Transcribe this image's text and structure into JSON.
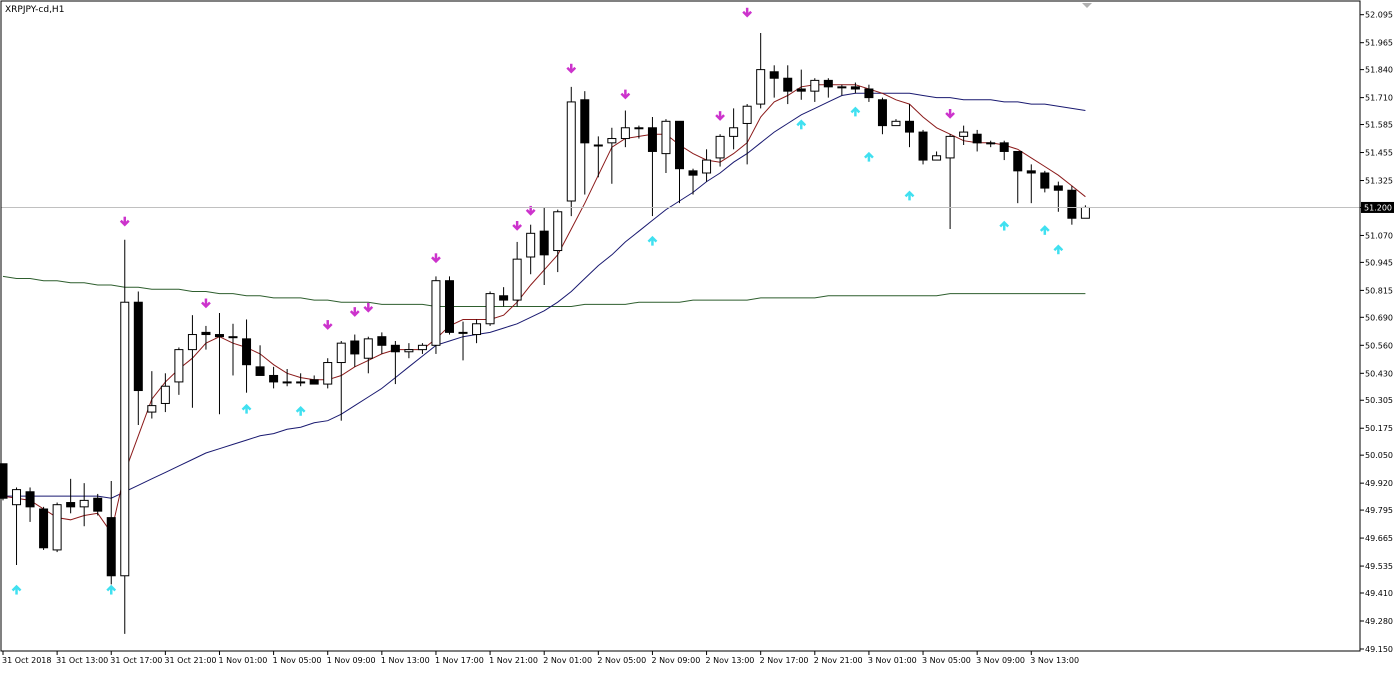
{
  "window": {
    "title": "XRPJPY-cd,H1"
  },
  "colors": {
    "background": "#ffffff",
    "frame": "#000000",
    "candle": "#000000",
    "ma_fast": "#8b1a1a",
    "ma_mid": "#191970",
    "ma_slow": "#2e5e2e",
    "arrow_up": "#40e0f0",
    "arrow_down": "#cc33cc",
    "price_line": "#c0c0c0",
    "price_label_bg": "#000000",
    "price_label_text": "#ffffff"
  },
  "chart_data": {
    "type": "candlestick",
    "symbol": "XRPJPY-cd",
    "timeframe": "H1",
    "ylim": [
      49.15,
      52.14
    ],
    "y_ticks": [
      "52.095",
      "51.965",
      "51.840",
      "51.710",
      "51.585",
      "51.455",
      "51.325",
      "51.200",
      "51.070",
      "50.945",
      "50.815",
      "50.690",
      "50.560",
      "50.430",
      "50.305",
      "50.175",
      "50.050",
      "49.920",
      "49.795",
      "49.665",
      "49.535",
      "49.410",
      "49.280",
      "49.150"
    ],
    "x_ticks": [
      {
        "i": 0,
        "label": "31 Oct 2018"
      },
      {
        "i": 4,
        "label": "31 Oct 13:00"
      },
      {
        "i": 8,
        "label": "31 Oct 17:00"
      },
      {
        "i": 12,
        "label": "31 Oct 21:00"
      },
      {
        "i": 16,
        "label": "1 Nov 01:00"
      },
      {
        "i": 20,
        "label": "1 Nov 05:00"
      },
      {
        "i": 24,
        "label": "1 Nov 09:00"
      },
      {
        "i": 28,
        "label": "1 Nov 13:00"
      },
      {
        "i": 32,
        "label": "1 Nov 17:00"
      },
      {
        "i": 36,
        "label": "1 Nov 21:00"
      },
      {
        "i": 40,
        "label": "2 Nov 01:00"
      },
      {
        "i": 44,
        "label": "2 Nov 05:00"
      },
      {
        "i": 48,
        "label": "2 Nov 09:00"
      },
      {
        "i": 52,
        "label": "2 Nov 13:00"
      },
      {
        "i": 56,
        "label": "2 Nov 17:00"
      },
      {
        "i": 60,
        "label": "2 Nov 21:00"
      },
      {
        "i": 64,
        "label": "3 Nov 01:00"
      },
      {
        "i": 68,
        "label": "3 Nov 05:00"
      },
      {
        "i": 72,
        "label": "3 Nov 09:00"
      },
      {
        "i": 76,
        "label": "3 Nov 13:00"
      }
    ],
    "current_price": 51.2,
    "current_price_label": "51.200",
    "candles": [
      {
        "o": 50.01,
        "h": 50.01,
        "l": 49.84,
        "c": 49.85
      },
      {
        "o": 49.82,
        "h": 49.9,
        "l": 49.54,
        "c": 49.89
      },
      {
        "o": 49.88,
        "h": 49.9,
        "l": 49.74,
        "c": 49.81
      },
      {
        "o": 49.8,
        "h": 49.81,
        "l": 49.61,
        "c": 49.62
      },
      {
        "o": 49.61,
        "h": 49.83,
        "l": 49.6,
        "c": 49.82
      },
      {
        "o": 49.83,
        "h": 49.94,
        "l": 49.78,
        "c": 49.81
      },
      {
        "o": 49.81,
        "h": 49.92,
        "l": 49.72,
        "c": 49.84
      },
      {
        "o": 49.85,
        "h": 49.87,
        "l": 49.77,
        "c": 49.79
      },
      {
        "o": 49.76,
        "h": 49.93,
        "l": 49.45,
        "c": 49.49
      },
      {
        "o": 49.49,
        "h": 51.05,
        "l": 49.22,
        "c": 50.76
      },
      {
        "o": 50.76,
        "h": 50.81,
        "l": 50.19,
        "c": 50.35
      },
      {
        "o": 50.25,
        "h": 50.44,
        "l": 50.22,
        "c": 50.28
      },
      {
        "o": 50.29,
        "h": 50.43,
        "l": 50.25,
        "c": 50.37
      },
      {
        "o": 50.39,
        "h": 50.55,
        "l": 50.33,
        "c": 50.54
      },
      {
        "o": 50.54,
        "h": 50.7,
        "l": 50.27,
        "c": 50.61
      },
      {
        "o": 50.62,
        "h": 50.65,
        "l": 50.54,
        "c": 50.61
      },
      {
        "o": 50.61,
        "h": 50.71,
        "l": 50.24,
        "c": 50.6
      },
      {
        "o": 50.6,
        "h": 50.66,
        "l": 50.42,
        "c": 50.6
      },
      {
        "o": 50.59,
        "h": 50.68,
        "l": 50.34,
        "c": 50.47
      },
      {
        "o": 50.46,
        "h": 50.56,
        "l": 50.42,
        "c": 50.42
      },
      {
        "o": 50.42,
        "h": 50.46,
        "l": 50.36,
        "c": 50.39
      },
      {
        "o": 50.39,
        "h": 50.45,
        "l": 50.37,
        "c": 50.39
      },
      {
        "o": 50.39,
        "h": 50.43,
        "l": 50.37,
        "c": 50.39
      },
      {
        "o": 50.4,
        "h": 50.42,
        "l": 50.38,
        "c": 50.38
      },
      {
        "o": 50.38,
        "h": 50.5,
        "l": 50.36,
        "c": 50.48
      },
      {
        "o": 50.48,
        "h": 50.58,
        "l": 50.21,
        "c": 50.57
      },
      {
        "o": 50.58,
        "h": 50.61,
        "l": 50.46,
        "c": 50.52
      },
      {
        "o": 50.5,
        "h": 50.6,
        "l": 50.43,
        "c": 50.59
      },
      {
        "o": 50.6,
        "h": 50.62,
        "l": 50.52,
        "c": 50.56
      },
      {
        "o": 50.56,
        "h": 50.58,
        "l": 50.38,
        "c": 50.53
      },
      {
        "o": 50.53,
        "h": 50.57,
        "l": 50.5,
        "c": 50.54
      },
      {
        "o": 50.54,
        "h": 50.57,
        "l": 50.52,
        "c": 50.56
      },
      {
        "o": 50.56,
        "h": 50.88,
        "l": 50.52,
        "c": 50.86
      },
      {
        "o": 50.86,
        "h": 50.88,
        "l": 50.61,
        "c": 50.62
      },
      {
        "o": 50.62,
        "h": 50.67,
        "l": 50.49,
        "c": 50.62
      },
      {
        "o": 50.61,
        "h": 50.68,
        "l": 50.57,
        "c": 50.66
      },
      {
        "o": 50.66,
        "h": 50.81,
        "l": 50.65,
        "c": 50.8
      },
      {
        "o": 50.79,
        "h": 50.83,
        "l": 50.74,
        "c": 50.77
      },
      {
        "o": 50.77,
        "h": 51.04,
        "l": 50.74,
        "c": 50.96
      },
      {
        "o": 50.97,
        "h": 51.12,
        "l": 50.89,
        "c": 51.08
      },
      {
        "o": 51.09,
        "h": 51.2,
        "l": 50.84,
        "c": 50.98
      },
      {
        "o": 51.0,
        "h": 51.19,
        "l": 50.9,
        "c": 51.18
      },
      {
        "o": 51.23,
        "h": 51.76,
        "l": 51.16,
        "c": 51.69
      },
      {
        "o": 51.7,
        "h": 51.74,
        "l": 51.26,
        "c": 51.5
      },
      {
        "o": 51.49,
        "h": 51.53,
        "l": 51.34,
        "c": 51.49
      },
      {
        "o": 51.5,
        "h": 51.57,
        "l": 51.31,
        "c": 51.52
      },
      {
        "o": 51.52,
        "h": 51.65,
        "l": 51.48,
        "c": 51.57
      },
      {
        "o": 51.57,
        "h": 51.58,
        "l": 51.52,
        "c": 51.57
      },
      {
        "o": 51.57,
        "h": 51.62,
        "l": 51.16,
        "c": 51.46
      },
      {
        "o": 51.45,
        "h": 51.61,
        "l": 51.36,
        "c": 51.6
      },
      {
        "o": 51.6,
        "h": 51.6,
        "l": 51.22,
        "c": 51.38
      },
      {
        "o": 51.37,
        "h": 51.38,
        "l": 51.26,
        "c": 51.35
      },
      {
        "o": 51.36,
        "h": 51.47,
        "l": 51.32,
        "c": 51.42
      },
      {
        "o": 51.43,
        "h": 51.54,
        "l": 51.39,
        "c": 51.53
      },
      {
        "o": 51.53,
        "h": 51.66,
        "l": 51.47,
        "c": 51.57
      },
      {
        "o": 51.59,
        "h": 51.68,
        "l": 51.4,
        "c": 51.67
      },
      {
        "o": 51.68,
        "h": 52.01,
        "l": 51.66,
        "c": 51.84
      },
      {
        "o": 51.83,
        "h": 51.86,
        "l": 51.71,
        "c": 51.8
      },
      {
        "o": 51.8,
        "h": 51.86,
        "l": 51.68,
        "c": 51.74
      },
      {
        "o": 51.75,
        "h": 51.84,
        "l": 51.7,
        "c": 51.74
      },
      {
        "o": 51.74,
        "h": 51.8,
        "l": 51.69,
        "c": 51.79
      },
      {
        "o": 51.79,
        "h": 51.8,
        "l": 51.71,
        "c": 51.76
      },
      {
        "o": 51.76,
        "h": 51.77,
        "l": 51.72,
        "c": 51.76
      },
      {
        "o": 51.76,
        "h": 51.78,
        "l": 51.73,
        "c": 51.75
      },
      {
        "o": 51.75,
        "h": 51.77,
        "l": 51.69,
        "c": 51.71
      },
      {
        "o": 51.7,
        "h": 51.71,
        "l": 51.54,
        "c": 51.58
      },
      {
        "o": 51.58,
        "h": 51.61,
        "l": 51.58,
        "c": 51.6
      },
      {
        "o": 51.6,
        "h": 51.68,
        "l": 51.48,
        "c": 51.55
      },
      {
        "o": 51.55,
        "h": 51.56,
        "l": 51.4,
        "c": 51.42
      },
      {
        "o": 51.42,
        "h": 51.46,
        "l": 51.42,
        "c": 51.44
      },
      {
        "o": 51.43,
        "h": 51.54,
        "l": 51.1,
        "c": 51.53
      },
      {
        "o": 51.53,
        "h": 51.58,
        "l": 51.49,
        "c": 51.55
      },
      {
        "o": 51.54,
        "h": 51.56,
        "l": 51.46,
        "c": 51.5
      },
      {
        "o": 51.5,
        "h": 51.51,
        "l": 51.48,
        "c": 51.5
      },
      {
        "o": 51.5,
        "h": 51.51,
        "l": 51.42,
        "c": 51.46
      },
      {
        "o": 51.46,
        "h": 51.46,
        "l": 51.22,
        "c": 51.37
      },
      {
        "o": 51.37,
        "h": 51.4,
        "l": 51.22,
        "c": 51.36
      },
      {
        "o": 51.36,
        "h": 51.37,
        "l": 51.27,
        "c": 51.29
      },
      {
        "o": 51.3,
        "h": 51.32,
        "l": 51.18,
        "c": 51.28
      },
      {
        "o": 51.28,
        "h": 51.3,
        "l": 51.12,
        "c": 51.15
      },
      {
        "o": 51.15,
        "h": 51.21,
        "l": 51.15,
        "c": 51.2
      }
    ],
    "ma_fast": [
      49.86,
      49.85,
      49.84,
      49.8,
      49.76,
      49.75,
      49.77,
      49.78,
      49.69,
      49.97,
      50.14,
      50.31,
      50.39,
      50.45,
      50.5,
      50.57,
      50.6,
      50.57,
      50.55,
      50.52,
      50.47,
      50.43,
      50.41,
      50.4,
      50.4,
      50.42,
      50.46,
      50.49,
      50.52,
      50.54,
      50.54,
      50.54,
      50.59,
      50.65,
      50.68,
      50.68,
      50.68,
      50.7,
      50.76,
      50.84,
      50.91,
      50.98,
      51.1,
      51.22,
      51.35,
      51.48,
      51.52,
      51.53,
      51.54,
      51.54,
      51.49,
      51.45,
      51.42,
      51.41,
      51.45,
      51.5,
      51.62,
      51.69,
      51.72,
      51.76,
      51.77,
      51.77,
      51.77,
      51.77,
      51.75,
      51.73,
      51.7,
      51.68,
      51.62,
      51.57,
      51.54,
      51.51,
      51.5,
      51.5,
      51.49,
      51.47,
      51.43,
      51.39,
      51.35,
      51.3,
      51.25
    ],
    "ma_mid": [
      49.86,
      49.86,
      49.86,
      49.86,
      49.86,
      49.86,
      49.86,
      49.86,
      49.85,
      49.88,
      49.91,
      49.94,
      49.97,
      50.0,
      50.03,
      50.06,
      50.08,
      50.1,
      50.12,
      50.14,
      50.15,
      50.17,
      50.18,
      50.2,
      50.21,
      50.24,
      50.28,
      50.32,
      50.36,
      50.41,
      50.46,
      50.51,
      50.56,
      50.58,
      50.6,
      50.61,
      50.62,
      50.64,
      50.66,
      50.69,
      50.72,
      50.76,
      50.81,
      50.87,
      50.93,
      50.98,
      51.04,
      51.09,
      51.14,
      51.19,
      51.23,
      51.27,
      51.32,
      51.36,
      51.41,
      51.45,
      51.5,
      51.55,
      51.59,
      51.63,
      51.66,
      51.69,
      51.72,
      51.73,
      51.73,
      51.73,
      51.73,
      51.73,
      51.72,
      51.71,
      51.71,
      51.7,
      51.7,
      51.7,
      51.69,
      51.69,
      51.68,
      51.68,
      51.67,
      51.66,
      51.65
    ],
    "ma_slow": [
      50.88,
      50.87,
      50.87,
      50.86,
      50.86,
      50.85,
      50.85,
      50.84,
      50.84,
      50.83,
      50.83,
      50.82,
      50.82,
      50.82,
      50.81,
      50.81,
      50.8,
      50.8,
      50.79,
      50.79,
      50.78,
      50.78,
      50.78,
      50.77,
      50.77,
      50.76,
      50.76,
      50.76,
      50.75,
      50.75,
      50.75,
      50.75,
      50.74,
      50.74,
      50.74,
      50.74,
      50.74,
      50.74,
      50.74,
      50.74,
      50.74,
      50.74,
      50.74,
      50.75,
      50.75,
      50.75,
      50.75,
      50.76,
      50.76,
      50.76,
      50.76,
      50.77,
      50.77,
      50.77,
      50.77,
      50.77,
      50.78,
      50.78,
      50.78,
      50.78,
      50.78,
      50.79,
      50.79,
      50.79,
      50.79,
      50.79,
      50.79,
      50.79,
      50.79,
      50.79,
      50.8,
      50.8,
      50.8,
      50.8,
      50.8,
      50.8,
      50.8,
      50.8,
      50.8,
      50.8,
      50.8
    ],
    "arrows_up": [
      {
        "i": 1,
        "y": 49.44
      },
      {
        "i": 8,
        "y": 49.44
      },
      {
        "i": 18,
        "y": 50.28
      },
      {
        "i": 22,
        "y": 50.27
      },
      {
        "i": 48,
        "y": 51.06
      },
      {
        "i": 59,
        "y": 51.6
      },
      {
        "i": 63,
        "y": 51.66
      },
      {
        "i": 64,
        "y": 51.45
      },
      {
        "i": 67,
        "y": 51.27
      },
      {
        "i": 74,
        "y": 51.13
      },
      {
        "i": 77,
        "y": 51.11
      },
      {
        "i": 78,
        "y": 51.02
      }
    ],
    "arrows_down": [
      {
        "i": 9,
        "y": 51.12
      },
      {
        "i": 15,
        "y": 50.74
      },
      {
        "i": 24,
        "y": 50.64
      },
      {
        "i": 26,
        "y": 50.7
      },
      {
        "i": 27,
        "y": 50.72
      },
      {
        "i": 32,
        "y": 50.95
      },
      {
        "i": 38,
        "y": 51.1
      },
      {
        "i": 39,
        "y": 51.17
      },
      {
        "i": 42,
        "y": 51.83
      },
      {
        "i": 46,
        "y": 51.71
      },
      {
        "i": 53,
        "y": 51.61
      },
      {
        "i": 55,
        "y": 52.09
      },
      {
        "i": 70,
        "y": 51.62
      }
    ]
  }
}
